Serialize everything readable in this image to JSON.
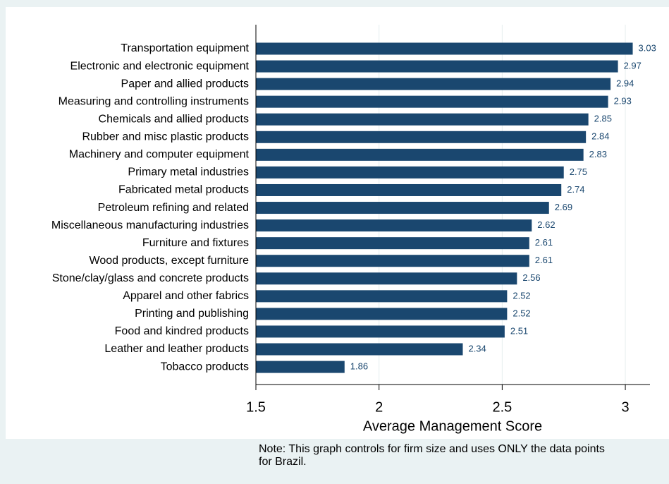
{
  "chart_data": {
    "type": "bar",
    "orientation": "horizontal",
    "categories": [
      "Transportation equipment",
      "Electronic and electronic equipment",
      "Paper and allied products",
      "Measuring and controlling instruments",
      "Chemicals and allied products",
      "Rubber and misc plastic products",
      "Machinery and computer equipment",
      "Primary metal industries",
      "Fabricated metal products",
      "Petroleum refining and related",
      "Miscellaneous manufacturing industries",
      "Furniture and fixtures",
      "Wood products, except furniture",
      "Stone/clay/glass and concrete products",
      "Apparel and other fabrics",
      "Printing and publishing",
      "Food and kindred products",
      "Leather and leather products",
      "Tobacco products"
    ],
    "values": [
      3.03,
      2.97,
      2.94,
      2.93,
      2.85,
      2.84,
      2.83,
      2.75,
      2.74,
      2.69,
      2.62,
      2.61,
      2.61,
      2.56,
      2.52,
      2.52,
      2.51,
      2.34,
      1.86
    ],
    "color": "#1a476f",
    "xlabel": "Average Management Score",
    "xlim": [
      1.5,
      3.1
    ],
    "xticks": [
      1.5,
      2,
      2.5,
      3
    ],
    "grid": true,
    "note": [
      "Note: This graph controls for firm size and uses ONLY the data points",
      "for Brazil."
    ]
  }
}
